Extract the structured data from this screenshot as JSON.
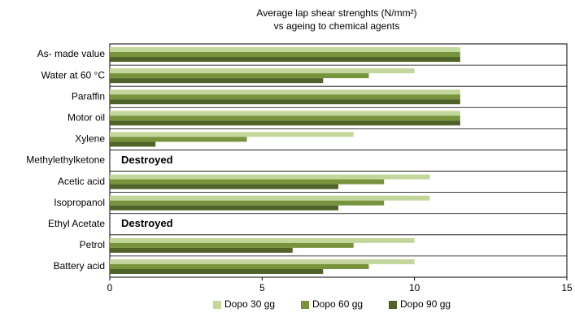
{
  "chart_data": {
    "type": "bar",
    "orientation": "horizontal",
    "title_lines": [
      "Average lap shear strenghts  (N/mm²)",
      "vs ageing to chemical agents"
    ],
    "categories": [
      "As- made value",
      "Water at 60 °C",
      "Paraffin",
      "Motor oil",
      "Xylene",
      "Methylethylketone",
      "Acetic acid",
      "Isopropanol",
      "Ethyl Acetate",
      "Petrol",
      "Battery acid"
    ],
    "series": [
      {
        "name": "Dopo 30 gg",
        "color": "#c3d69b",
        "values": [
          11.5,
          10,
          11.5,
          11.5,
          8,
          null,
          10.5,
          10.5,
          null,
          10,
          10
        ]
      },
      {
        "name": "Dopo 60 gg",
        "color": "#77933c",
        "values": [
          11.5,
          8.5,
          11.5,
          11.5,
          4.5,
          null,
          9,
          9,
          null,
          8,
          8.5
        ]
      },
      {
        "name": "Dopo 90 gg",
        "color": "#4f6228",
        "values": [
          11.5,
          7,
          11.5,
          11.5,
          1.5,
          null,
          7.5,
          7.5,
          null,
          6,
          7
        ]
      }
    ],
    "annotations": [
      {
        "category": "Methylethylketone",
        "text": "Destroyed"
      },
      {
        "category": "Ethyl Acetate",
        "text": "Destroyed"
      }
    ],
    "xlim": [
      0,
      15
    ],
    "xticks": [
      0,
      5,
      10,
      15
    ],
    "grid": "horizontal category separators",
    "legend_position": "bottom"
  }
}
